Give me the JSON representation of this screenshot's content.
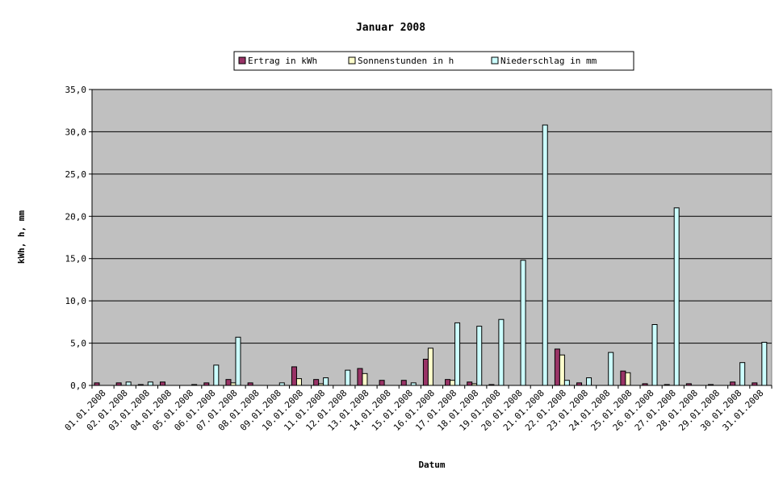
{
  "chart_data": {
    "type": "bar",
    "title": "Januar 2008",
    "xlabel": "Datum",
    "ylabel": "kWh, h, mm",
    "ylim": [
      0,
      35
    ],
    "ytick_step": 5,
    "ytick_labels": [
      "0,0",
      "5,0",
      "10,0",
      "15,0",
      "20,0",
      "25,0",
      "30,0",
      "35,0"
    ],
    "grid": true,
    "legend_placement": "top-center",
    "categories": [
      "01.01.2008",
      "02.01.2008",
      "03.01.2008",
      "04.01.2008",
      "05.01.2008",
      "06.01.2008",
      "07.01.2008",
      "08.01.2008",
      "09.01.2008",
      "10.01.2008",
      "11.01.2008",
      "12.01.2008",
      "13.01.2008",
      "14.01.2008",
      "15.01.2008",
      "16.01.2008",
      "17.01.2008",
      "18.01.2008",
      "19.01.2008",
      "20.01.2008",
      "21.01.2008",
      "22.01.2008",
      "23.01.2008",
      "24.01.2008",
      "25.01.2008",
      "26.01.2008",
      "27.01.2008",
      "28.01.2008",
      "29.01.2008",
      "30.01.2008",
      "31.01.2008"
    ],
    "series": [
      {
        "name": "Ertrag in kWh",
        "color": "#993366",
        "values": [
          0.3,
          0.3,
          0.1,
          0.4,
          0.0,
          0.3,
          0.7,
          0.3,
          0.0,
          2.2,
          0.7,
          0.0,
          2.0,
          0.6,
          0.6,
          3.1,
          0.7,
          0.4,
          0.1,
          0.0,
          0.0,
          4.3,
          0.3,
          0.0,
          1.7,
          0.2,
          0.1,
          0.2,
          0.1,
          0.4,
          0.3
        ]
      },
      {
        "name": "Sonnenstunden in h",
        "color": "#FFFFCC",
        "values": [
          0.0,
          0.0,
          0.0,
          0.0,
          0.0,
          0.0,
          0.3,
          0.0,
          0.0,
          0.8,
          0.2,
          0.0,
          1.4,
          0.0,
          0.0,
          4.4,
          0.6,
          0.2,
          0.0,
          0.0,
          0.0,
          3.6,
          0.0,
          0.0,
          1.5,
          0.0,
          0.0,
          0.0,
          0.0,
          0.0,
          0.0
        ]
      },
      {
        "name": "Niederschlag in mm",
        "color": "#CCFFFF",
        "values": [
          0.0,
          0.4,
          0.4,
          0.0,
          0.1,
          2.4,
          5.7,
          0.0,
          0.3,
          0.0,
          0.9,
          1.8,
          0.0,
          0.0,
          0.3,
          0.0,
          7.4,
          7.0,
          7.8,
          14.8,
          30.8,
          0.6,
          0.9,
          3.9,
          0.0,
          7.2,
          21.0,
          0.0,
          0.0,
          2.7,
          5.1
        ]
      }
    ]
  },
  "colors": {
    "plot_background": "#C0C0C0",
    "gridline": "#000000",
    "bar_stroke": "#000000"
  }
}
